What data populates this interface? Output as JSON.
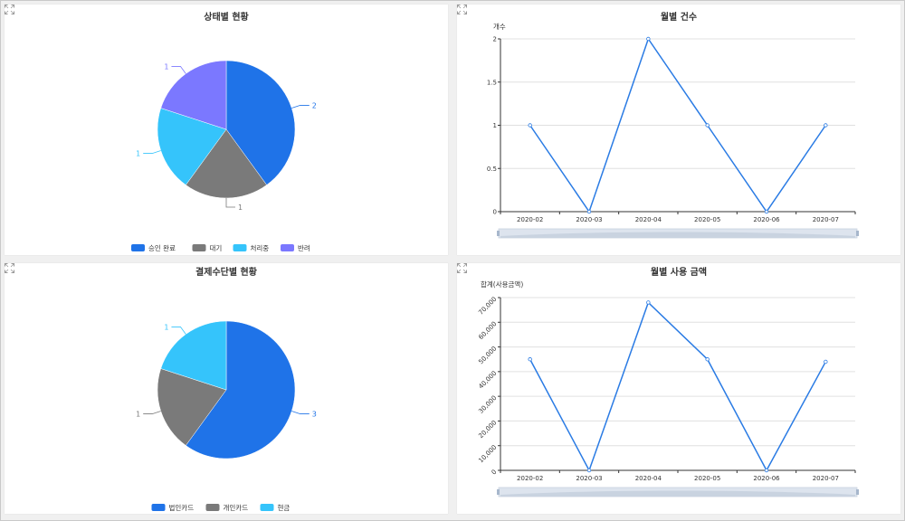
{
  "chart_data": [
    {
      "id": "status",
      "type": "pie",
      "title": "상태별 현황",
      "slices": [
        {
          "name": "승인 완료",
          "value": 2,
          "color": "#1f73e8"
        },
        {
          "name": "대기",
          "value": 1,
          "color": "#7a7a7a"
        },
        {
          "name": "처리중",
          "value": 1,
          "color": "#35c4fb"
        },
        {
          "name": "반려",
          "value": 1,
          "color": "#7b78ff"
        }
      ],
      "legend_position": "bottom"
    },
    {
      "id": "monthly-count",
      "type": "line",
      "title": "월별 건수",
      "ylabel": "개수",
      "categories": [
        "2020-02",
        "2020-03",
        "2020-04",
        "2020-05",
        "2020-06",
        "2020-07"
      ],
      "values": [
        1,
        0,
        2,
        1,
        0,
        1
      ],
      "ylim": [
        0,
        2
      ],
      "yticks": [
        0,
        0.5,
        1,
        1.5,
        2
      ],
      "ytick_labels": [
        "0",
        "0.5",
        "1",
        "1.5",
        "2"
      ],
      "color": "#2a7be4",
      "grid": true,
      "zoom_slider": true
    },
    {
      "id": "payment",
      "type": "pie",
      "title": "결제수단별 현황",
      "slices": [
        {
          "name": "법인카드",
          "value": 3,
          "color": "#1f73e8"
        },
        {
          "name": "개인카드",
          "value": 1,
          "color": "#7a7a7a"
        },
        {
          "name": "현금",
          "value": 1,
          "color": "#35c4fb"
        }
      ],
      "legend_position": "bottom"
    },
    {
      "id": "monthly-amount",
      "type": "line",
      "title": "월별 사용 금액",
      "ylabel": "합계(사용금액)",
      "categories": [
        "2020-02",
        "2020-03",
        "2020-04",
        "2020-05",
        "2020-06",
        "2020-07"
      ],
      "values": [
        45000,
        0,
        68000,
        45000,
        0,
        44000
      ],
      "ylim": [
        0,
        70000
      ],
      "yticks": [
        0,
        10000,
        20000,
        30000,
        40000,
        50000,
        60000,
        70000
      ],
      "ytick_labels": [
        "0",
        "10,000",
        "20,000",
        "30,000",
        "40,000",
        "50,000",
        "60,000",
        "70,000"
      ],
      "color": "#2a7be4",
      "grid": true,
      "zoom_slider": true
    }
  ]
}
